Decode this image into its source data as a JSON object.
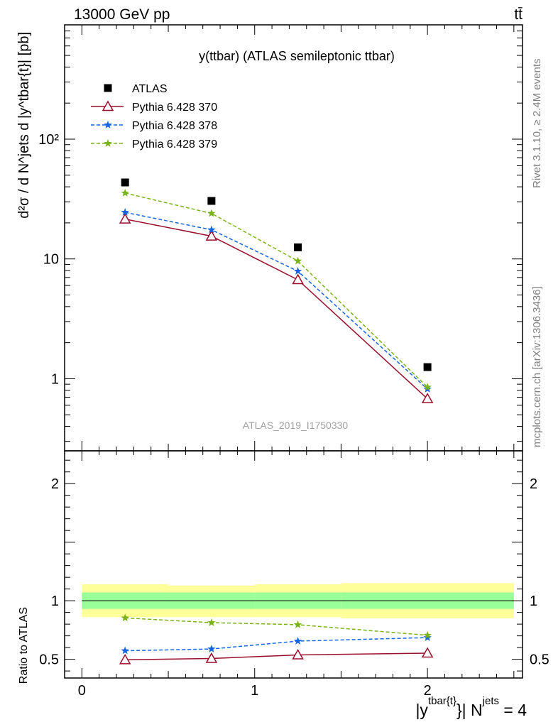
{
  "header": {
    "left": "13000 GeV pp",
    "right": "tt̄"
  },
  "side_labels": {
    "top": "Rivet 3.1.10, ≥ 2.4M events",
    "bottom": "mcplots.cern.ch [arXiv:1306.3436]"
  },
  "watermark": "ATLAS_2019_I1750330",
  "colors": {
    "atlas": "#000000",
    "p370": "#9a0e2b",
    "p378": "#1565e0",
    "p379": "#7ab317",
    "band_inner": "#99ff99",
    "band_outer": "#ffff99"
  },
  "chart_data": [
    {
      "type": "scatter",
      "title": "y(ttbar) (ATLAS semileptonic ttbar)",
      "ylabel": "d²σ / d N^jets d |y^tbar{t}| [pb]",
      "yscale": "log",
      "ylim": [
        0.25,
        900
      ],
      "xlim": [
        -0.1,
        2.55
      ],
      "yticks": [
        {
          "value": 1,
          "label": "1"
        },
        {
          "value": 10,
          "label": "10"
        },
        {
          "value": 100,
          "label": "10²"
        }
      ],
      "legend_position": "top-left",
      "series": [
        {
          "name": "ATLAS",
          "marker": "square",
          "x": [
            0.25,
            0.75,
            1.25,
            2.0
          ],
          "values": [
            43.5,
            30.5,
            12.5,
            1.25
          ]
        },
        {
          "name": "Pythia 6.428 370",
          "marker": "triangle",
          "line": "solid",
          "x": [
            0.25,
            0.75,
            1.25,
            2.0
          ],
          "values": [
            21.5,
            15.5,
            6.7,
            0.68
          ]
        },
        {
          "name": "Pythia 6.428 378",
          "marker": "star",
          "line": "dashed",
          "x": [
            0.25,
            0.75,
            1.25,
            2.0
          ],
          "values": [
            24.5,
            17.5,
            7.9,
            0.82
          ]
        },
        {
          "name": "Pythia 6.428 379",
          "marker": "star",
          "line": "dashed",
          "x": [
            0.25,
            0.75,
            1.25,
            2.0
          ],
          "values": [
            35.5,
            24.0,
            9.6,
            0.85
          ]
        }
      ]
    },
    {
      "type": "line",
      "ylabel": "Ratio to ATLAS",
      "xlabel_main": "|y",
      "xlabel_sup1": "tbar{t}",
      "xlabel_mid": "}| N",
      "xlabel_sup2": "jets",
      "xlabel_end": " = 4",
      "ylim": [
        0.34,
        2.28
      ],
      "xlim": [
        -0.1,
        2.55
      ],
      "xticks": [
        {
          "value": 0,
          "label": "0"
        },
        {
          "value": 1,
          "label": "1"
        },
        {
          "value": 2,
          "label": "2"
        }
      ],
      "yticks": [
        {
          "value": 0.5,
          "label": "0.5"
        },
        {
          "value": 1,
          "label": "1"
        },
        {
          "value": 2,
          "label": "2"
        }
      ],
      "bands": {
        "bins": [
          [
            0,
            0.5
          ],
          [
            0.5,
            1.0
          ],
          [
            1.0,
            1.5
          ],
          [
            1.5,
            2.5
          ]
        ],
        "inner": [
          [
            0.93,
            1.07
          ],
          [
            0.93,
            1.07
          ],
          [
            0.93,
            1.07
          ],
          [
            0.93,
            1.07
          ]
        ],
        "outer": [
          [
            0.86,
            1.14
          ],
          [
            0.86,
            1.13
          ],
          [
            0.86,
            1.14
          ],
          [
            0.85,
            1.15
          ]
        ]
      },
      "series": [
        {
          "name": "Pythia 6.428 370",
          "x": [
            0.25,
            0.75,
            1.25,
            2.0
          ],
          "values": [
            0.495,
            0.507,
            0.537,
            0.552
          ]
        },
        {
          "name": "Pythia 6.428 378",
          "x": [
            0.25,
            0.75,
            1.25,
            2.0
          ],
          "values": [
            0.573,
            0.588,
            0.655,
            0.685
          ]
        },
        {
          "name": "Pythia 6.428 379",
          "x": [
            0.25,
            0.75,
            1.25,
            2.0
          ],
          "values": [
            0.853,
            0.813,
            0.795,
            0.705
          ]
        }
      ]
    }
  ]
}
